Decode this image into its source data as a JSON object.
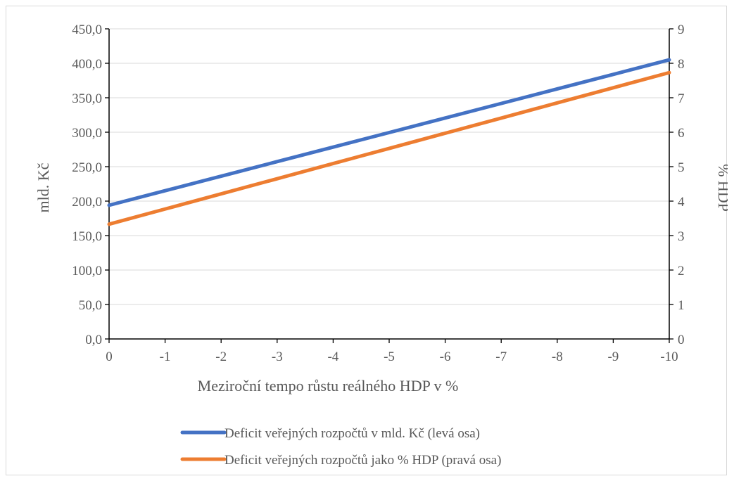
{
  "chart_data": {
    "type": "line",
    "title": "",
    "xlabel": "Meziroční tempo růstu reálného HDP v %",
    "ylabel_left": "mld. Kč",
    "ylabel_right": "% HDP",
    "x": [
      0,
      -1,
      -2,
      -3,
      -4,
      -5,
      -6,
      -7,
      -8,
      -9,
      -10
    ],
    "x_tick_labels": [
      "0",
      "-1",
      "-2",
      "-3",
      "-4",
      "-5",
      "-6",
      "-7",
      "-8",
      "-9",
      "-10"
    ],
    "y_left_ticks": [
      "0,0",
      "50,0",
      "100,0",
      "150,0",
      "200,0",
      "250,0",
      "300,0",
      "350,0",
      "400,0",
      "450,0"
    ],
    "y_left_range": [
      0,
      450
    ],
    "y_right_ticks": [
      "0",
      "1",
      "2",
      "3",
      "4",
      "5",
      "6",
      "7",
      "8",
      "9"
    ],
    "y_right_range": [
      0,
      9
    ],
    "grid": true,
    "legend_position": "bottom",
    "series": [
      {
        "name": "Deficit veřejných rozpočtů v mld. Kč (levá osa)",
        "axis": "left",
        "color": "#4472C4",
        "values": [
          194,
          215.1,
          236.2,
          257.3,
          278.4,
          299.5,
          320.6,
          341.7,
          362.8,
          383.9,
          405
        ]
      },
      {
        "name": "Deficit veřejných rozpočtů jako % HDP (pravá osa)",
        "axis": "right",
        "color": "#ED7D31",
        "values": [
          3.33,
          3.77,
          4.21,
          4.65,
          5.09,
          5.53,
          5.97,
          6.41,
          6.85,
          7.29,
          7.73
        ]
      }
    ]
  }
}
